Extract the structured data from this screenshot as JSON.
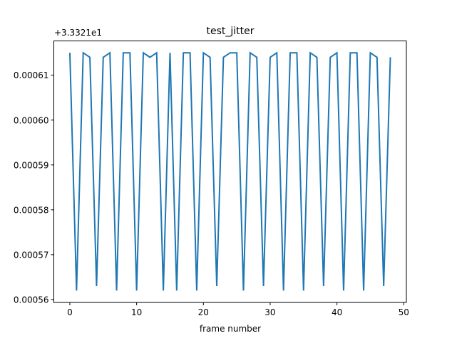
{
  "chart_data": {
    "type": "line",
    "title": "test_jitter",
    "xlabel": "frame number",
    "ylabel": "",
    "y_offset_text": "+3.3321e1",
    "xlim": [
      -2.4,
      50.4
    ],
    "ylim": [
      0.00055935,
      0.00061765
    ],
    "x_ticks": [
      0,
      10,
      20,
      30,
      40,
      50
    ],
    "x_tick_labels": [
      "0",
      "10",
      "20",
      "30",
      "40",
      "50"
    ],
    "y_ticks": [
      0.00056,
      0.00057,
      0.00058,
      0.00059,
      0.0006,
      0.00061
    ],
    "y_tick_labels": [
      "0.00056",
      "0.00057",
      "0.00058",
      "0.00059",
      "0.00060",
      "0.00061"
    ],
    "grid": false,
    "series": [
      {
        "color": "#1f77b4",
        "x": [
          0,
          1,
          2,
          3,
          4,
          5,
          6,
          7,
          8,
          9,
          10,
          11,
          12,
          13,
          14,
          15,
          16,
          17,
          18,
          19,
          20,
          21,
          22,
          23,
          24,
          25,
          26,
          27,
          28,
          29,
          30,
          31,
          32,
          33,
          34,
          35,
          36,
          37,
          38,
          39,
          40,
          41,
          42,
          43,
          44,
          45,
          46,
          47,
          48
        ],
        "y": [
          0.000615,
          0.000562,
          0.000615,
          0.000614,
          0.000563,
          0.000614,
          0.000615,
          0.000562,
          0.000615,
          0.000615,
          0.000562,
          0.000615,
          0.000614,
          0.000615,
          0.000562,
          0.000615,
          0.000562,
          0.000615,
          0.000615,
          0.000562,
          0.000615,
          0.000614,
          0.000563,
          0.000614,
          0.000615,
          0.000615,
          0.000562,
          0.000615,
          0.000614,
          0.000563,
          0.000614,
          0.000615,
          0.000562,
          0.000615,
          0.000615,
          0.000562,
          0.000615,
          0.000614,
          0.000563,
          0.000614,
          0.000615,
          0.000562,
          0.000615,
          0.000615,
          0.000562,
          0.000615,
          0.000614,
          0.000563,
          0.000614
        ]
      }
    ]
  }
}
